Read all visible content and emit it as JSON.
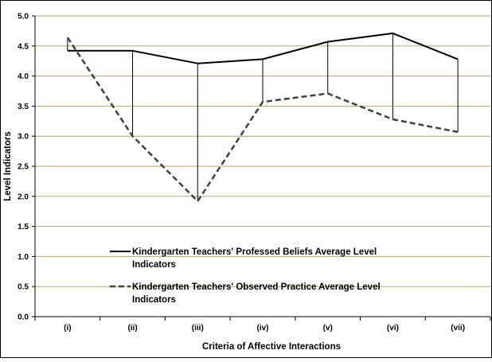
{
  "chart_data": {
    "type": "line",
    "title": "",
    "xlabel": "Criteria of Affective Interactions",
    "ylabel": "Level Indicators",
    "categories": [
      "(i)",
      "(ii)",
      "(iii)",
      "(iv)",
      "(v)",
      "(vi)",
      "(vii)"
    ],
    "ylim": [
      0,
      5
    ],
    "yticks": [
      "0.0",
      "0.5",
      "1.0",
      "1.5",
      "2.0",
      "2.5",
      "3.0",
      "3.5",
      "4.0",
      "4.5",
      "5.0"
    ],
    "grid": true,
    "drop_lines": true,
    "legend_position": "lower-left",
    "series": [
      {
        "name": "Kindergarten Teachers' Professed Beliefs Average Level Indicators",
        "line_style": "solid",
        "color": "#000000",
        "values": [
          4.42,
          4.42,
          4.21,
          4.28,
          4.57,
          4.71,
          4.28
        ]
      },
      {
        "name": "Kindergarten Teachers' Observed Practice Average Level Indicators",
        "line_style": "dashed",
        "color": "#404040",
        "values": [
          4.64,
          3.0,
          1.92,
          3.57,
          3.71,
          3.28,
          3.07
        ]
      }
    ],
    "gridline_color": "#b6a66a"
  }
}
